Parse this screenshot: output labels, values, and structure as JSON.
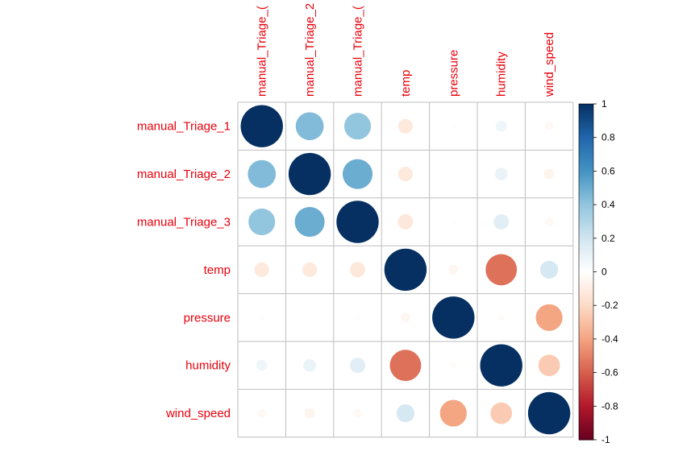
{
  "chart_data": {
    "type": "heatmap",
    "variables": [
      "manual_Triage_1",
      "manual_Triage_2",
      "manual_Triage_3",
      "temp",
      "pressure",
      "humidity",
      "wind_speed"
    ],
    "column_labels_visible": [
      "manual_Triage_(",
      "manual_Triage_2",
      "manual_Triage_(",
      "temp",
      "pressure",
      "humidity",
      "wind_speed"
    ],
    "matrix": [
      [
        1.0,
        0.44,
        0.4,
        -0.12,
        -0.01,
        0.07,
        -0.04
      ],
      [
        0.44,
        1.0,
        0.5,
        -0.12,
        0.0,
        0.09,
        -0.06
      ],
      [
        0.4,
        0.5,
        1.0,
        -0.13,
        -0.01,
        0.13,
        -0.04
      ],
      [
        -0.12,
        -0.12,
        -0.13,
        1.0,
        -0.05,
        -0.55,
        0.18
      ],
      [
        -0.01,
        0.0,
        -0.01,
        -0.05,
        1.0,
        -0.02,
        -0.4
      ],
      [
        0.07,
        0.09,
        0.13,
        -0.55,
        -0.02,
        1.0,
        -0.26
      ],
      [
        -0.04,
        -0.06,
        -0.04,
        0.18,
        -0.4,
        -0.26,
        1.0
      ]
    ],
    "colorbar": {
      "range": [
        -1,
        1
      ],
      "ticks": [
        "1",
        "0.8",
        "0.6",
        "0.4",
        "0.2",
        "0",
        "-0.2",
        "-0.4",
        "-0.6",
        "-0.8",
        "-1"
      ]
    },
    "marker": "circle",
    "grid": true,
    "title": "",
    "xlabel": "",
    "ylabel": ""
  }
}
